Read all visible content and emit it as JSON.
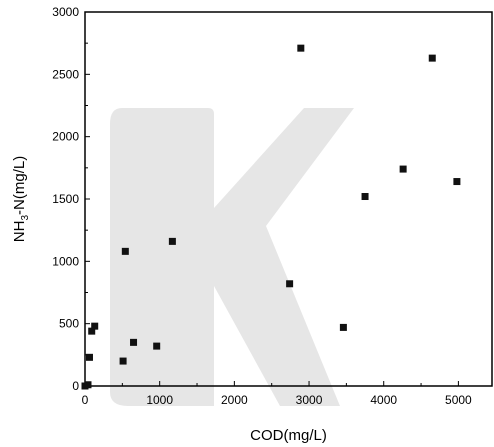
{
  "chart_data": {
    "type": "scatter",
    "title": "",
    "xlabel": "COD(mg/L)",
    "ylabel_parts": {
      "pre": "NH",
      "sub": "3",
      "post": "-N(mg/L)"
    },
    "xlim": [
      0,
      5450
    ],
    "ylim": [
      0,
      3000
    ],
    "xticks": [
      0,
      1000,
      2000,
      3000,
      4000,
      5000
    ],
    "yticks": [
      0,
      500,
      1000,
      1500,
      2000,
      2500,
      3000
    ],
    "grid": false,
    "legend": "none",
    "marker": "square",
    "marker_color": "#111111",
    "watermark": {
      "letter": "K",
      "color": "#e6e6e6"
    },
    "series": [
      {
        "x": [
          0,
          40,
          60,
          90,
          130,
          510,
          540,
          650,
          960,
          1170,
          2740,
          2890,
          3460,
          3750,
          4260,
          4650,
          4980
        ],
        "y": [
          0,
          10,
          230,
          440,
          480,
          200,
          1080,
          350,
          320,
          1160,
          820,
          2710,
          470,
          1520,
          1740,
          2630,
          1640
        ]
      }
    ]
  }
}
